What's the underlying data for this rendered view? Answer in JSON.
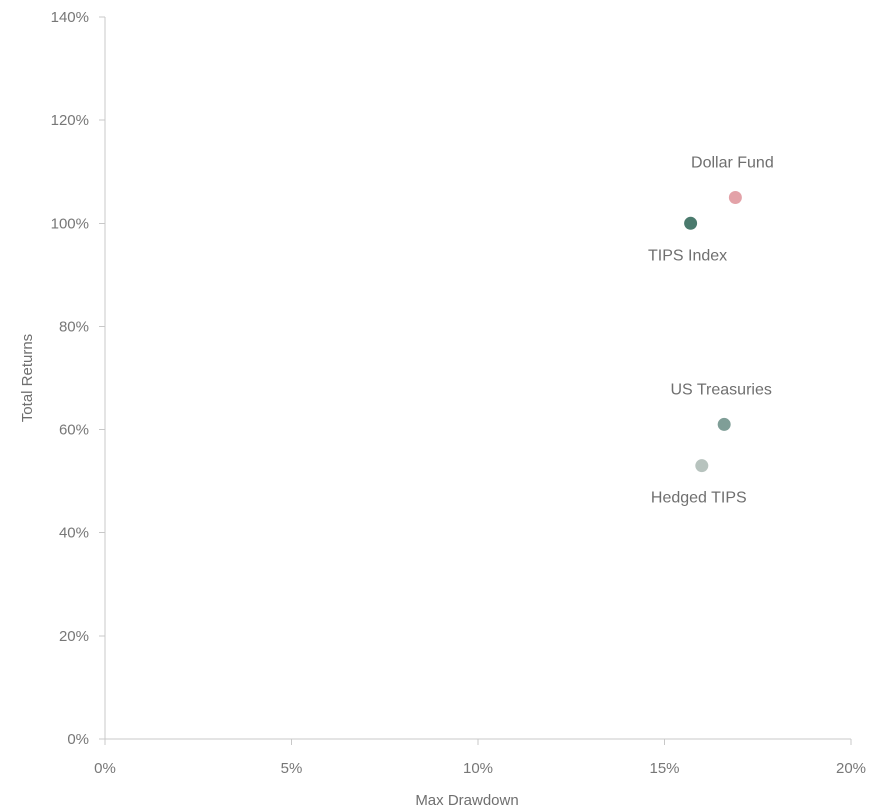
{
  "chart_data": {
    "type": "scatter",
    "title": "",
    "xlabel": "Max Drawdown",
    "ylabel": "Total Returns",
    "xlim": [
      0,
      0.2
    ],
    "ylim": [
      0,
      1.4
    ],
    "x_ticks": [
      {
        "value": 0,
        "label": "0%"
      },
      {
        "value": 0.05,
        "label": "5%"
      },
      {
        "value": 0.1,
        "label": "10%"
      },
      {
        "value": 0.15,
        "label": "15%"
      },
      {
        "value": 0.2,
        "label": "20%"
      }
    ],
    "y_ticks": [
      {
        "value": 0,
        "label": "0%"
      },
      {
        "value": 0.2,
        "label": "20%"
      },
      {
        "value": 0.4,
        "label": "40%"
      },
      {
        "value": 0.6,
        "label": "60%"
      },
      {
        "value": 0.8,
        "label": "80%"
      },
      {
        "value": 1.0,
        "label": "100%"
      },
      {
        "value": 1.2,
        "label": "120%"
      },
      {
        "value": 1.4,
        "label": "140%"
      }
    ],
    "grid": false,
    "legend": "none",
    "points": [
      {
        "name": "Dollar Fund",
        "x": 0.169,
        "y": 1.05,
        "color": "#e3a2a8",
        "label_position": "above"
      },
      {
        "name": "TIPS Index",
        "x": 0.157,
        "y": 1.0,
        "color": "#4a7a6d",
        "label_position": "below"
      },
      {
        "name": "US Treasuries",
        "x": 0.166,
        "y": 0.61,
        "color": "#7f9e97",
        "label_position": "above"
      },
      {
        "name": "Hedged TIPS",
        "x": 0.16,
        "y": 0.53,
        "color": "#b7c3be",
        "label_position": "below"
      }
    ]
  }
}
